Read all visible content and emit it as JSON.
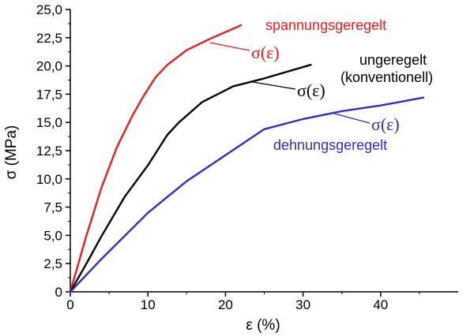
{
  "chart_data": {
    "type": "line",
    "xlabel": "ε (%)",
    "ylabel": "σ (MPa)",
    "xlim": [
      0,
      50
    ],
    "ylim": [
      0,
      25
    ],
    "x_ticks": [
      "0",
      "10",
      "20",
      "30",
      "40"
    ],
    "y_ticks": [
      "0",
      "2,5",
      "5,0",
      "7,5",
      "10,0",
      "12,5",
      "15,0",
      "17,5",
      "20,0",
      "22,5",
      "25,0"
    ],
    "grid": false,
    "series": [
      {
        "name": "spannungsgeregelt",
        "color": "#ee1c1c",
        "x": [
          0,
          2,
          4,
          6,
          8,
          9.5,
          11,
          12.5,
          15,
          18,
          21,
          22
        ],
        "y": [
          0,
          4.8,
          9.2,
          12.8,
          15.6,
          17.4,
          19,
          20.1,
          21.4,
          22.4,
          23.3,
          23.6
        ]
      },
      {
        "name": "ungeregelt (konventionell)",
        "color": "#000000",
        "x": [
          0,
          2,
          4,
          7,
          10,
          12.5,
          14,
          17,
          21,
          25,
          29,
          31
        ],
        "y": [
          0,
          2.4,
          4.9,
          8.4,
          11.2,
          13.9,
          15,
          16.8,
          18.2,
          18.9,
          19.7,
          20.1
        ]
      },
      {
        "name": "dehnungsgeregelt",
        "color": "#2e2ec8",
        "x": [
          0,
          4,
          10,
          15,
          20,
          25,
          30,
          35,
          40,
          45.5
        ],
        "y": [
          0,
          2.9,
          7,
          9.8,
          12.1,
          14.4,
          15.3,
          16,
          16.5,
          17.2
        ]
      }
    ],
    "annotations": [
      {
        "text": "spannungsgeregelt",
        "color": "#ee1c1c",
        "series": 0
      },
      {
        "text": "σ(ε)",
        "color": "#ee1c1c",
        "series": 0
      },
      {
        "text": "ungeregelt",
        "color": "#000000",
        "series": 1
      },
      {
        "text": "(konventionell)",
        "color": "#000000",
        "series": 1
      },
      {
        "text": "σ(ε)",
        "color": "#000000",
        "series": 1
      },
      {
        "text": "σ(ε)",
        "color": "#2e2ec8",
        "series": 2
      },
      {
        "text": "dehnungsgeregelt",
        "color": "#2e2ec8",
        "series": 2
      }
    ]
  }
}
